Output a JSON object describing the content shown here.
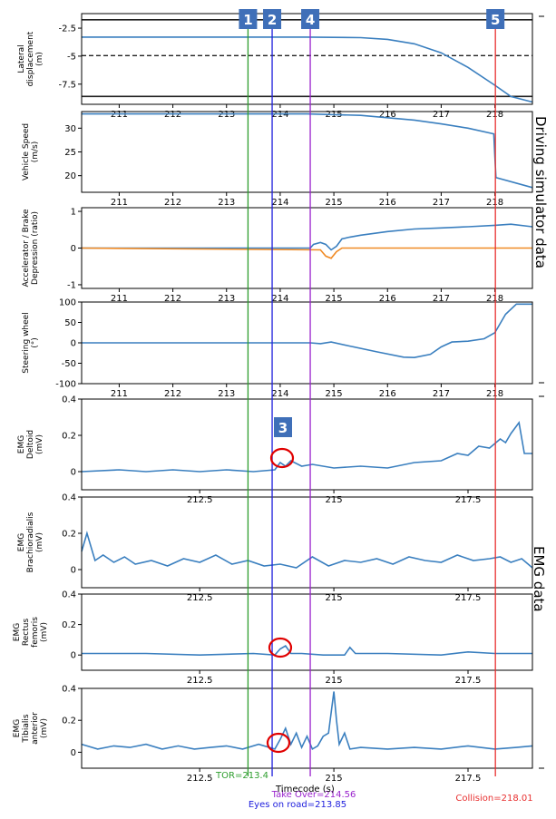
{
  "x_axis_label": "Timecode (s)",
  "section_labels": {
    "driving": "Driving simulator data",
    "emg": "EMG data"
  },
  "colors": {
    "series": "#3a7fbf",
    "brake": "#f08a24",
    "tor": "#2e9e2e",
    "eyes": "#2020dd",
    "takeover": "#9922cc",
    "collision": "#e83030",
    "marker_box": "#3f6fb8",
    "circle": "#e00000"
  },
  "events": [
    {
      "marker": "1",
      "x": 213.4,
      "label": "TOR=213.4",
      "color": "#2e9e2e"
    },
    {
      "marker": "2",
      "x": 213.85,
      "label": "Eyes on road=213.85",
      "color": "#2020dd"
    },
    {
      "marker": "4",
      "x": 214.56,
      "label": "Take Over=214.56",
      "color": "#9922cc"
    },
    {
      "marker": "5",
      "x": 218.01,
      "label": "Collision=218.01",
      "color": "#e83030"
    }
  ],
  "emg_marker": "3",
  "chart_data": [
    {
      "type": "line",
      "ylabel": "Lateral\ndisplacement\n(m)",
      "ylim": [
        -9.3,
        -1.2
      ],
      "yticks": [
        -2.5,
        -5.0,
        -7.5
      ],
      "xticks": [
        211,
        212,
        213,
        214,
        215,
        216,
        217,
        218
      ],
      "xlim": [
        210.3,
        218.7
      ],
      "hlines": [
        {
          "y": -1.75,
          "style": "solid"
        },
        {
          "y": -4.95,
          "style": "dashed"
        },
        {
          "y": -8.6,
          "style": "solid"
        }
      ],
      "series": [
        {
          "x": [
            210.3,
            214.5,
            215.5,
            216.0,
            216.5,
            217.0,
            217.5,
            218.0,
            218.3,
            218.7
          ],
          "y": [
            -3.3,
            -3.3,
            -3.35,
            -3.5,
            -3.9,
            -4.7,
            -6.0,
            -7.6,
            -8.6,
            -9.1
          ]
        }
      ]
    },
    {
      "type": "line",
      "ylabel": "Vehicle Speed\n(m/s)",
      "ylim": [
        16.5,
        33.5
      ],
      "yticks": [
        20,
        25,
        30
      ],
      "xticks": [
        211,
        212,
        213,
        214,
        215,
        216,
        217,
        218
      ],
      "xlim": [
        210.3,
        218.7
      ],
      "series": [
        {
          "x": [
            210.3,
            214.5,
            215.5,
            216.5,
            217.0,
            217.5,
            217.98,
            218.0,
            218.02,
            218.7
          ],
          "y": [
            33.0,
            33.0,
            32.7,
            31.7,
            30.9,
            30.0,
            28.8,
            24.0,
            19.6,
            17.5
          ]
        }
      ]
    },
    {
      "type": "line",
      "ylabel": "Accelerator / Brake\nDepression (ratio)",
      "ylim": [
        -1.1,
        1.1
      ],
      "yticks": [
        -1,
        0,
        1
      ],
      "xticks": [
        211,
        212,
        213,
        214,
        215,
        216,
        217,
        218
      ],
      "xlim": [
        210.3,
        218.7
      ],
      "series": [
        {
          "name": "",
          "x": [
            210.3,
            214.56,
            214.62,
            214.75,
            214.85,
            214.95,
            215.05,
            215.15,
            215.3,
            215.5,
            216.0,
            216.5,
            217.0,
            217.5,
            218.0,
            218.3,
            218.7
          ],
          "y": [
            0,
            0,
            0.1,
            0.15,
            0.1,
            -0.05,
            0.05,
            0.25,
            0.3,
            0.35,
            0.45,
            0.52,
            0.55,
            0.58,
            0.62,
            0.65,
            0.58
          ]
        },
        {
          "name": "",
          "color": "#f08a24",
          "x": [
            210.3,
            214.75,
            214.85,
            214.95,
            215.05,
            215.15,
            218.7
          ],
          "y": [
            0,
            -0.05,
            -0.22,
            -0.28,
            -0.1,
            0,
            0
          ]
        }
      ]
    },
    {
      "type": "line",
      "ylabel": "Steering wheel\n(°)",
      "ylim": [
        -100,
        100
      ],
      "yticks": [
        -100,
        -50,
        0,
        50,
        100
      ],
      "xticks": [
        211,
        212,
        213,
        214,
        215,
        216,
        217,
        218
      ],
      "xlim": [
        210.3,
        218.7
      ],
      "series": [
        {
          "x": [
            210.3,
            214.56,
            214.75,
            214.95,
            215.3,
            215.8,
            216.3,
            216.5,
            216.8,
            217.0,
            217.2,
            217.5,
            217.8,
            218.0,
            218.2,
            218.4,
            218.7
          ],
          "y": [
            0,
            0,
            -2,
            2,
            -8,
            -22,
            -35,
            -36,
            -28,
            -10,
            2,
            4,
            10,
            25,
            70,
            95,
            95
          ]
        }
      ]
    },
    {
      "type": "line",
      "ylabel": "EMG\nDeltoid\n(mV)",
      "ylim": [
        -0.1,
        0.4
      ],
      "yticks": [
        0.0,
        0.2,
        0.4
      ],
      "xticks": [
        212.5,
        215.0,
        217.5
      ],
      "xlim": [
        210.3,
        218.7
      ],
      "series": [
        {
          "x": [
            210.3,
            211.0,
            211.5,
            212.0,
            212.5,
            213.0,
            213.5,
            213.9,
            214.0,
            214.1,
            214.2,
            214.4,
            214.6,
            215.0,
            215.5,
            216.0,
            216.5,
            217.0,
            217.3,
            217.5,
            217.7,
            217.9,
            218.1,
            218.2,
            218.3,
            218.45,
            218.55,
            218.7
          ],
          "y": [
            0.0,
            0.01,
            0.0,
            0.01,
            0.0,
            0.01,
            0.0,
            0.01,
            0.05,
            0.03,
            0.06,
            0.03,
            0.04,
            0.02,
            0.03,
            0.02,
            0.05,
            0.06,
            0.1,
            0.09,
            0.14,
            0.13,
            0.18,
            0.16,
            0.21,
            0.27,
            0.1,
            0.1
          ]
        }
      ]
    },
    {
      "type": "line",
      "ylabel": "EMG\nBrachioradialis\n(mV)",
      "ylim": [
        -0.1,
        0.4
      ],
      "yticks": [
        0.0,
        0.2,
        0.4
      ],
      "xticks": [
        212.5,
        215.0,
        217.5
      ],
      "xlim": [
        210.3,
        218.7
      ],
      "series": [
        {
          "x": [
            210.3,
            210.4,
            210.55,
            210.7,
            210.9,
            211.1,
            211.3,
            211.6,
            211.9,
            212.2,
            212.5,
            212.8,
            213.1,
            213.4,
            213.7,
            214.0,
            214.3,
            214.6,
            214.9,
            215.2,
            215.5,
            215.8,
            216.1,
            216.4,
            216.7,
            217.0,
            217.3,
            217.6,
            217.9,
            218.1,
            218.3,
            218.5,
            218.7
          ],
          "y": [
            0.1,
            0.2,
            0.05,
            0.08,
            0.04,
            0.07,
            0.03,
            0.05,
            0.02,
            0.06,
            0.04,
            0.08,
            0.03,
            0.05,
            0.02,
            0.03,
            0.01,
            0.07,
            0.02,
            0.05,
            0.04,
            0.06,
            0.03,
            0.07,
            0.05,
            0.04,
            0.08,
            0.05,
            0.06,
            0.07,
            0.04,
            0.06,
            0.01
          ]
        }
      ]
    },
    {
      "type": "line",
      "ylabel": "EMG\nRectus\nfemoris\n(mV)",
      "ylim": [
        -0.1,
        0.4
      ],
      "yticks": [
        0.0,
        0.2,
        0.4
      ],
      "xticks": [
        212.5,
        215.0,
        217.5
      ],
      "xlim": [
        210.3,
        218.7
      ],
      "series": [
        {
          "x": [
            210.3,
            211.5,
            212.5,
            213.5,
            213.9,
            214.0,
            214.1,
            214.2,
            214.4,
            214.8,
            215.2,
            215.3,
            215.4,
            216.0,
            217.0,
            217.5,
            218.0,
            218.7
          ],
          "y": [
            0.01,
            0.01,
            0.0,
            0.01,
            0.0,
            0.04,
            0.06,
            0.01,
            0.01,
            0.0,
            0.0,
            0.05,
            0.01,
            0.01,
            0.0,
            0.02,
            0.01,
            0.01
          ]
        }
      ]
    },
    {
      "type": "line",
      "ylabel": "EMG\nTibialis\nanterior\n(mV)",
      "ylim": [
        -0.1,
        0.4
      ],
      "yticks": [
        0.0,
        0.2,
        0.4
      ],
      "xticks": [
        212.5,
        215.0,
        217.5
      ],
      "xlim": [
        210.3,
        218.7
      ],
      "series": [
        {
          "x": [
            210.3,
            210.6,
            210.9,
            211.2,
            211.5,
            211.8,
            212.1,
            212.4,
            212.7,
            213.0,
            213.3,
            213.6,
            213.9,
            214.0,
            214.1,
            214.2,
            214.3,
            214.4,
            214.5,
            214.6,
            214.7,
            214.8,
            214.9,
            215.0,
            215.05,
            215.1,
            215.2,
            215.3,
            215.5,
            216.0,
            216.5,
            217.0,
            217.5,
            218.0,
            218.4,
            218.7
          ],
          "y": [
            0.05,
            0.02,
            0.04,
            0.03,
            0.05,
            0.02,
            0.04,
            0.02,
            0.03,
            0.04,
            0.02,
            0.05,
            0.02,
            0.08,
            0.15,
            0.05,
            0.12,
            0.03,
            0.1,
            0.02,
            0.04,
            0.1,
            0.12,
            0.38,
            0.2,
            0.05,
            0.12,
            0.02,
            0.03,
            0.02,
            0.03,
            0.02,
            0.04,
            0.02,
            0.03,
            0.04
          ]
        }
      ]
    }
  ]
}
